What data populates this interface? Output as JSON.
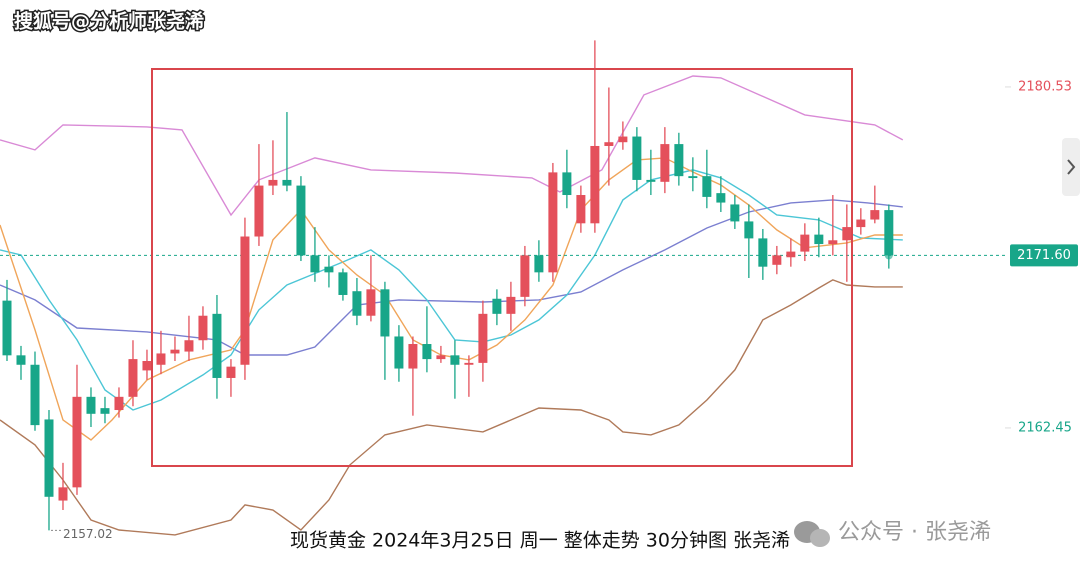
{
  "watermark": "搜狐号@分析师张尧浠",
  "brand": "公众号 · 张尧浠",
  "chart_data": {
    "type": "candlestick",
    "title": "现货黄金 2024年3月25日 周一 整体走势 30分钟图 张尧浠",
    "up_color": "#e4505b",
    "down_color": "#18a689",
    "xlim": [
      -0.5,
      71.3
    ],
    "ylim": [
      2154.6,
      2185.14
    ],
    "yticks": [
      2180.53,
      2162.45
    ],
    "last_price": {
      "value": 2171.6,
      "label": "2171.60"
    },
    "low_annotation": 2157.02,
    "open": [
      2169.2,
      2166.3,
      2165.8,
      2162.9,
      2158.6,
      2159.3,
      2164.1,
      2163.5,
      2163.4,
      2164.1,
      2165.5,
      2165.8,
      2166.4,
      2166.5,
      2167.1,
      2168.5,
      2165.1,
      2165.8,
      2172.6,
      2175.3,
      2175.6,
      2175.3,
      2171.6,
      2171.0,
      2170.7,
      2169.7,
      2168.4,
      2169.8,
      2167.3,
      2165.6,
      2166.9,
      2166.1,
      2166.3,
      2165.8,
      2165.9,
      2169.3,
      2168.5,
      2169.4,
      2171.6,
      2170.7,
      2176.0,
      2173.3,
      2173.3,
      2177.4,
      2177.6,
      2177.9,
      2175.6,
      2175.5,
      2177.5,
      2175.8,
      2175.8,
      2174.9,
      2174.3,
      2173.4,
      2172.5,
      2171.1,
      2171.5,
      2171.8,
      2172.7,
      2172.2,
      2172.4,
      2173.1,
      2173.5,
      2174.0
    ],
    "high": [
      2170.3,
      2166.8,
      2166.5,
      2163.4,
      2160.6,
      2165.8,
      2164.6,
      2164.1,
      2164.6,
      2167.1,
      2166.6,
      2167.6,
      2167.3,
      2168.4,
      2168.9,
      2169.5,
      2166.1,
      2173.6,
      2177.5,
      2177.7,
      2179.2,
      2175.8,
      2173.1,
      2171.6,
      2170.9,
      2170.4,
      2171.6,
      2170.2,
      2167.9,
      2167.3,
      2168.9,
      2166.8,
      2167.1,
      2166.3,
      2169.2,
      2169.8,
      2170.2,
      2172.1,
      2172.4,
      2176.5,
      2177.2,
      2175.3,
      2183.0,
      2180.5,
      2178.7,
      2178.4,
      2177.2,
      2178.4,
      2178.1,
      2176.8,
      2177.2,
      2175.8,
      2174.8,
      2174.3,
      2173.0,
      2172.1,
      2172.5,
      2173.3,
      2173.6,
      2174.8,
      2174.3,
      2174.1,
      2175.3,
      2174.3
    ],
    "low": [
      2166.0,
      2165.0,
      2162.3,
      2157.02,
      2158.1,
      2158.9,
      2162.5,
      2162.7,
      2163.0,
      2163.6,
      2165.0,
      2165.3,
      2166.0,
      2166.0,
      2166.6,
      2164.0,
      2164.1,
      2165.0,
      2172.1,
      2174.8,
      2175.0,
      2171.3,
      2170.2,
      2169.9,
      2169.2,
      2167.9,
      2168.1,
      2165.0,
      2164.9,
      2163.1,
      2165.4,
      2165.9,
      2164.0,
      2164.1,
      2164.9,
      2167.9,
      2167.6,
      2168.9,
      2170.2,
      2170.2,
      2174.1,
      2172.8,
      2172.8,
      2175.3,
      2177.2,
      2175.0,
      2174.8,
      2174.9,
      2175.3,
      2175.0,
      2174.1,
      2173.9,
      2173.0,
      2170.4,
      2170.3,
      2170.6,
      2171.0,
      2171.3,
      2171.5,
      2171.6,
      2170.2,
      2172.7,
      2173.3,
      2170.9
    ],
    "close": [
      2166.3,
      2165.8,
      2162.6,
      2158.8,
      2159.3,
      2164.1,
      2163.2,
      2163.2,
      2164.1,
      2166.1,
      2166.0,
      2166.4,
      2166.6,
      2167.1,
      2168.4,
      2165.1,
      2165.7,
      2172.6,
      2175.3,
      2175.6,
      2175.3,
      2171.6,
      2170.7,
      2170.7,
      2169.5,
      2168.4,
      2169.8,
      2167.3,
      2165.6,
      2166.9,
      2166.1,
      2166.3,
      2165.8,
      2165.9,
      2168.5,
      2168.5,
      2169.4,
      2171.6,
      2170.7,
      2176.0,
      2174.8,
      2174.8,
      2177.4,
      2177.6,
      2177.9,
      2175.6,
      2175.5,
      2177.5,
      2175.8,
      2175.7,
      2174.7,
      2174.4,
      2173.4,
      2172.5,
      2171.0,
      2171.6,
      2171.8,
      2172.7,
      2172.2,
      2172.4,
      2173.1,
      2173.5,
      2174.0,
      2171.6
    ],
    "lines": [
      {
        "color": "#d98ad6",
        "x": [
          -0.5,
          2,
          4,
          10,
          12.5,
          16,
          18,
          22,
          26,
          32,
          37.5,
          39.5,
          42.5,
          45.5,
          49,
          51,
          57,
          62,
          64
        ],
        "values": [
          2177.72,
          2177.19,
          2178.52,
          2178.41,
          2178.25,
          2173.74,
          2175.6,
          2176.77,
          2176.13,
          2175.97,
          2175.71,
          2174.96,
          2176.13,
          2180.11,
          2181.11,
          2181.01,
          2179.05,
          2178.52,
          2177.72
        ]
      },
      {
        "color": "#b07a5a",
        "x": [
          -0.5,
          2,
          4,
          6,
          8,
          12,
          16,
          17,
          19,
          21,
          23,
          24.5,
          27,
          30,
          34,
          36,
          38,
          41,
          43,
          44,
          46,
          48,
          50,
          52,
          54,
          56,
          58,
          59,
          60,
          62,
          64
        ],
        "values": [
          2162.87,
          2161.55,
          2159.69,
          2157.57,
          2157.04,
          2156.78,
          2157.57,
          2158.37,
          2158.1,
          2157.04,
          2158.63,
          2160.49,
          2162.08,
          2162.61,
          2162.24,
          2162.87,
          2163.51,
          2163.4,
          2162.87,
          2162.24,
          2162.08,
          2162.61,
          2163.93,
          2165.53,
          2168.18,
          2168.97,
          2169.87,
          2170.3,
          2170.03,
          2169.93,
          2169.93
        ]
      },
      {
        "color": "#7b7fd0",
        "x": [
          -0.5,
          2,
          5,
          10,
          15,
          17,
          20,
          22,
          25,
          28,
          34,
          38,
          41,
          44,
          47,
          50,
          53,
          56,
          59,
          61.5,
          64
        ],
        "values": [
          2170.03,
          2169.24,
          2167.75,
          2167.54,
          2167.12,
          2166.32,
          2166.32,
          2166.74,
          2168.97,
          2169.24,
          2169.13,
          2169.24,
          2169.66,
          2170.83,
          2171.89,
          2173.05,
          2173.9,
          2174.38,
          2174.54,
          2174.38,
          2174.17
        ]
      },
      {
        "color": "#4cc6d6",
        "x": [
          -0.5,
          1,
          3,
          5,
          7,
          9,
          11,
          14,
          16,
          18,
          20,
          24,
          26,
          28,
          30,
          32,
          34,
          36,
          38,
          40,
          42,
          44,
          46,
          49,
          51,
          53,
          55,
          58,
          61,
          64
        ],
        "values": [
          2171.89,
          2171.62,
          2169.24,
          2167.12,
          2164.46,
          2163.4,
          2163.93,
          2165.26,
          2166.32,
          2168.71,
          2170.03,
          2171.25,
          2171.89,
          2170.83,
          2169.24,
          2167.12,
          2167.01,
          2167.38,
          2168.18,
          2169.5,
          2171.62,
          2174.54,
          2175.6,
          2176.13,
          2175.71,
          2174.8,
          2173.74,
          2173.48,
          2172.52,
          2172.42
        ]
      },
      {
        "color": "#f0a55a",
        "x": [
          -0.5,
          2,
          4,
          6,
          7.5,
          10,
          13,
          16,
          17,
          19,
          21,
          23,
          25,
          27,
          29,
          31,
          33,
          35,
          37,
          39,
          41,
          43,
          45,
          47,
          49,
          51,
          53,
          55,
          57,
          60,
          62,
          64
        ],
        "values": [
          2173.21,
          2167.65,
          2162.87,
          2161.81,
          2162.87,
          2164.99,
          2166.06,
          2166.59,
          2167.65,
          2172.42,
          2174.01,
          2171.89,
          2170.56,
          2169.5,
          2167.12,
          2166.32,
          2166.06,
          2166.85,
          2168.18,
          2170.03,
          2174.01,
          2175.6,
          2176.66,
          2176.77,
          2176.02,
          2175.33,
          2174.27,
          2172.95,
          2172.0,
          2172.26,
          2172.68,
          2172.68
        ]
      }
    ]
  }
}
